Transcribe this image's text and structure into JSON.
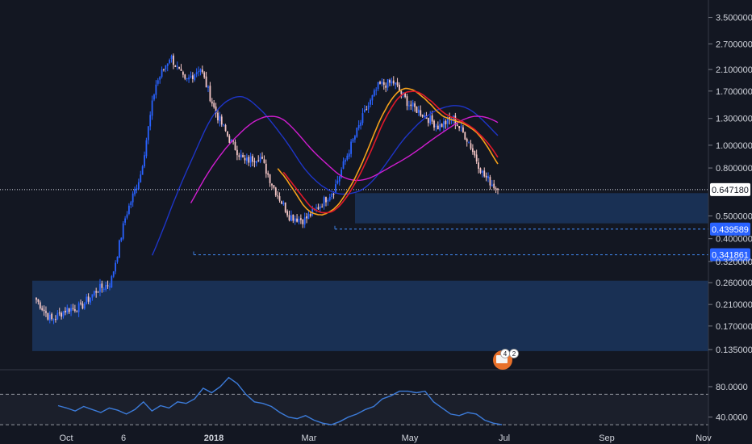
{
  "chart_data": {
    "type": "candlestick",
    "title": "",
    "log_scale": true,
    "colors": {
      "background": "#131722",
      "up": "#2962ff",
      "down": "#f4c6c6",
      "zone": "#1c3a66",
      "ma_blue": "#1e35c8",
      "ma_magenta": "#d01dd0",
      "ma_red": "#e0192a",
      "ma_orange": "#f6a11a",
      "rsi": "#3c7bd9",
      "level_line": "#3c7bd9",
      "tag_bg": "#2962ff",
      "last_tag_bg": "#ffffff"
    },
    "price_axis": {
      "ticks": [
        "3.500000",
        "2.700000",
        "2.100000",
        "1.700000",
        "1.300000",
        "1.000000",
        "0.800000",
        "0.500000",
        "0.400000",
        "0.320000",
        "0.260000",
        "0.210000",
        "0.170000",
        "0.135000"
      ],
      "tick_values": [
        3.5,
        2.7,
        2.1,
        1.7,
        1.3,
        1.0,
        0.8,
        0.5,
        0.4,
        0.32,
        0.26,
        0.21,
        0.17,
        0.135
      ],
      "range": [
        0.118,
        4.15
      ]
    },
    "time_axis": {
      "labels": [
        "Oct",
        "6",
        "2018",
        "Mar",
        "May",
        "Jul",
        "Sep",
        "Nov"
      ],
      "bold": [
        "2018"
      ]
    },
    "last_price": {
      "label": "0.647180",
      "value": 0.64718
    },
    "levels": [
      {
        "label": "0.439589",
        "value": 0.439589
      },
      {
        "label": "0.341861",
        "value": 0.341861
      }
    ],
    "zones": [
      {
        "name": "support-zone-low",
        "top": 0.265,
        "bottom": 0.133
      },
      {
        "name": "support-zone-mid",
        "top": 0.625,
        "bottom": 0.465
      }
    ],
    "anchor_prices": [
      0.22,
      0.18,
      0.2,
      0.205,
      0.24,
      0.26,
      0.5,
      0.75,
      1.8,
      2.4,
      1.85,
      2.15,
      1.4,
      1.05,
      0.85,
      0.9,
      0.65,
      0.5,
      0.48,
      0.55,
      0.65,
      0.95,
      1.35,
      1.8,
      1.85,
      1.5,
      1.35,
      1.2,
      1.3,
      1.05,
      0.75,
      0.64718
    ],
    "rsi": {
      "ticks": [
        "80.0000",
        "40.0000"
      ],
      "tick_values": [
        80,
        40
      ],
      "upper": 70,
      "lower": 30,
      "range": [
        28,
        98
      ],
      "values": [
        55,
        52,
        48,
        54,
        50,
        46,
        52,
        49,
        44,
        50,
        60,
        48,
        55,
        52,
        60,
        58,
        64,
        78,
        72,
        80,
        92,
        84,
        70,
        60,
        58,
        54,
        46,
        40,
        38,
        42,
        36,
        32,
        30,
        34,
        40,
        44,
        50,
        54,
        64,
        68,
        74,
        74,
        72,
        74,
        60,
        52,
        44,
        42,
        46,
        44,
        36,
        32,
        30
      ]
    },
    "badges": [
      {
        "label": "4"
      },
      {
        "label": "2"
      }
    ]
  }
}
